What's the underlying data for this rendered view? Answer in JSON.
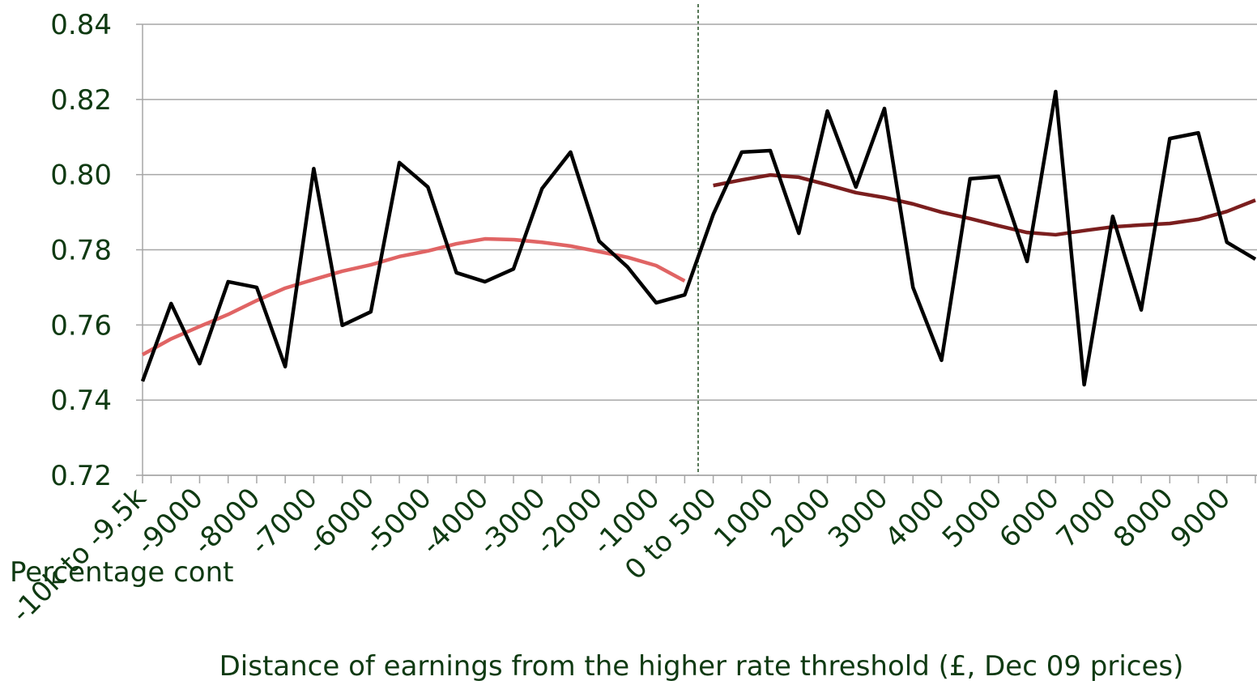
{
  "chart_data": {
    "type": "line",
    "x_axis_title": "Distance of earnings from the higher rate threshold (£, Dec 09 prices)",
    "clipped_label": "Percentage cont",
    "categories": [
      "-10k to -9.5k",
      null,
      "-9000",
      null,
      "-8000",
      null,
      "-7000",
      null,
      "-6000",
      null,
      "-5000",
      null,
      "-4000",
      null,
      "-3000",
      null,
      "-2000",
      null,
      "-1000",
      null,
      "0 to 500",
      null,
      "1000",
      null,
      "2000",
      null,
      "3000",
      null,
      "4000",
      null,
      "5000",
      null,
      "6000",
      null,
      "7000",
      null,
      "8000",
      null,
      "9000",
      null
    ],
    "series": [
      {
        "color": "#000000",
        "values": [
          0.745,
          0.7657,
          0.7497,
          0.7715,
          0.77,
          0.7489,
          0.8016,
          0.7599,
          0.7635,
          0.8032,
          0.7967,
          0.7739,
          0.7715,
          0.7749,
          0.7963,
          0.806,
          0.7823,
          0.7754,
          0.7659,
          0.768,
          0.7894,
          0.806,
          0.8064,
          0.7844,
          0.8169,
          0.7967,
          0.8176,
          0.77,
          0.7506,
          0.7989,
          0.7995,
          0.7769,
          0.8221,
          0.7441,
          0.7889,
          0.764,
          0.8096,
          0.8111,
          0.782,
          0.7775
        ]
      },
      {
        "color": "#e06464",
        "values": [
          0.7521,
          0.7563,
          0.7596,
          0.7628,
          0.7665,
          0.7698,
          0.7721,
          0.7743,
          0.776,
          0.7782,
          0.7797,
          0.7816,
          0.7829,
          0.7827,
          0.782,
          0.781,
          0.7795,
          0.778,
          0.7758,
          0.7717,
          null,
          null,
          null,
          null,
          null,
          null,
          null,
          null,
          null,
          null,
          null,
          null,
          null,
          null,
          null,
          null,
          null,
          null,
          null,
          null
        ]
      },
      {
        "color": "#7b1e1e",
        "values": [
          null,
          null,
          null,
          null,
          null,
          null,
          null,
          null,
          null,
          null,
          null,
          null,
          null,
          null,
          null,
          null,
          null,
          null,
          null,
          null,
          0.7971,
          0.7986,
          0.7999,
          0.7993,
          0.7973,
          0.7952,
          0.7939,
          0.7922,
          0.79,
          0.7883,
          0.7864,
          0.7846,
          0.784,
          0.7851,
          0.7861,
          0.7866,
          0.787,
          0.7881,
          0.7902,
          0.7932
        ]
      }
    ],
    "ylim": [
      0.72,
      0.84
    ],
    "yticks": [
      {
        "value": 0.72,
        "label": "0.72"
      },
      {
        "value": 0.74,
        "label": "0.74"
      },
      {
        "value": 0.76,
        "label": "0.76"
      },
      {
        "value": 0.78,
        "label": "0.78"
      },
      {
        "value": 0.8,
        "label": "0.80"
      },
      {
        "value": 0.82,
        "label": "0.82"
      },
      {
        "value": 0.84,
        "label": "0.84"
      }
    ],
    "grid": true
  }
}
